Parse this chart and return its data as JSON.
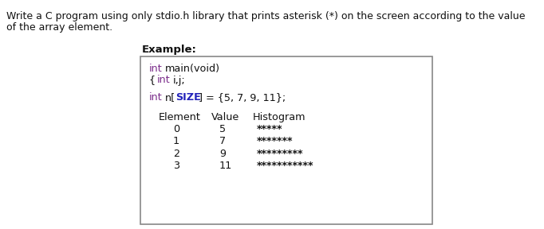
{
  "title_line1": "Write a C program using only stdio.h library that prints asterisk (*) on the screen according to the value",
  "title_line2": "of the array element.",
  "example_label": "Example:",
  "rows": [
    {
      "element": "0",
      "value": "5",
      "histogram": "*****"
    },
    {
      "element": "1",
      "value": "7",
      "histogram": "*******"
    },
    {
      "element": "2",
      "value": "9",
      "histogram": "*********"
    },
    {
      "element": "3",
      "value": "11",
      "histogram": "***********"
    }
  ],
  "bg_color": "#ffffff",
  "border_color": "#888888",
  "title_color": "#111111",
  "purple_color": "#7B2D8B",
  "blue_color": "#2222BB",
  "black_color": "#111111",
  "title_fontsize": 9.0,
  "code_fontsize": 9.2,
  "table_fontsize": 9.2,
  "example_fontsize": 9.5
}
